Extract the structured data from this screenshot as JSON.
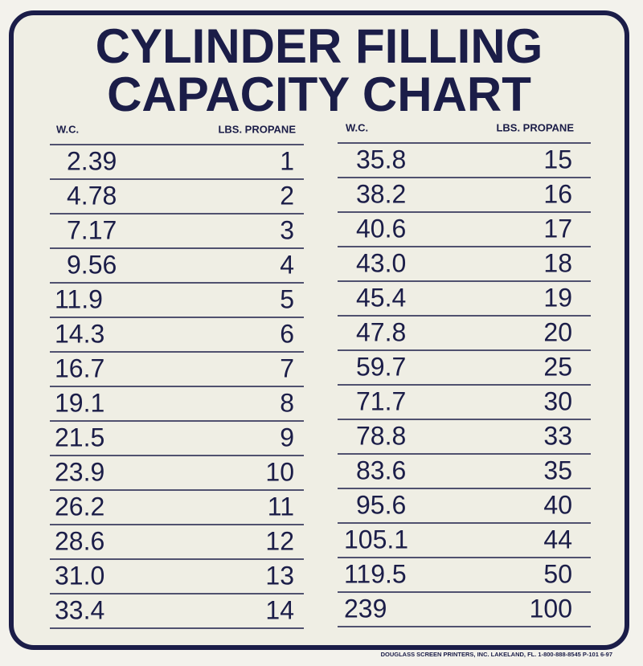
{
  "title": [
    "CYLINDER FILLING",
    "CAPACITY CHART"
  ],
  "tables": [
    {
      "headers": [
        "W.C.",
        "LBS. PROPANE"
      ],
      "rows": [
        [
          "2.39",
          "1"
        ],
        [
          "4.78",
          "2"
        ],
        [
          "7.17",
          "3"
        ],
        [
          "9.56",
          "4"
        ],
        [
          "11.9",
          "5"
        ],
        [
          "14.3",
          "6"
        ],
        [
          "16.7",
          "7"
        ],
        [
          "19.1",
          "8"
        ],
        [
          "21.5",
          "9"
        ],
        [
          "23.9",
          "10"
        ],
        [
          "26.2",
          "11"
        ],
        [
          "28.6",
          "12"
        ],
        [
          "31.0",
          "13"
        ],
        [
          "33.4",
          "14"
        ]
      ]
    },
    {
      "headers": [
        "W.C.",
        "LBS. PROPANE"
      ],
      "rows": [
        [
          "35.8",
          "15"
        ],
        [
          "38.2",
          "16"
        ],
        [
          "40.6",
          "17"
        ],
        [
          "43.0",
          "18"
        ],
        [
          "45.4",
          "19"
        ],
        [
          "47.8",
          "20"
        ],
        [
          "59.7",
          "25"
        ],
        [
          "71.7",
          "30"
        ],
        [
          "78.8",
          "33"
        ],
        [
          "83.6",
          "35"
        ],
        [
          "95.6",
          "40"
        ],
        [
          "105.1",
          "44"
        ],
        [
          "119.5",
          "50"
        ],
        [
          "239",
          "100"
        ]
      ]
    }
  ],
  "footer": "DOUGLASS SCREEN PRINTERS, INC. LAKELAND, FL. 1-800-888-8545 P-101 6-97"
}
